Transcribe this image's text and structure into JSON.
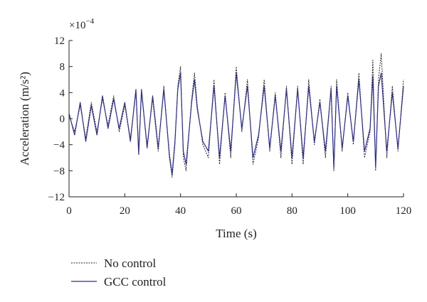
{
  "chart_data": {
    "type": "line",
    "xlabel": "Time (s)",
    "ylabel": "Acceleration (m/s²)",
    "y_multiplier": "×10",
    "y_multiplier_exponent": "−4",
    "xlim": [
      0,
      120
    ],
    "ylim": [
      -12,
      12
    ],
    "x_ticks": [
      0,
      20,
      40,
      60,
      80,
      100,
      120
    ],
    "x_tick_labels": [
      "0",
      "20",
      "40",
      "60",
      "80",
      "100",
      "120"
    ],
    "y_ticks": [
      -12,
      -8,
      -4,
      0,
      4,
      8,
      12
    ],
    "y_tick_labels": [
      "−12",
      "−8",
      "−4",
      "0",
      "4",
      "8",
      "12"
    ],
    "grid": false,
    "legend_placement": "bottom-left",
    "series": [
      {
        "name": "No control",
        "style": "dashed",
        "color": "#222222",
        "x": [
          0,
          2,
          4,
          6,
          8,
          10,
          12,
          14,
          16,
          18,
          20,
          22,
          24,
          25,
          26,
          28,
          30,
          32,
          34,
          36,
          37,
          38,
          39,
          40,
          41,
          42,
          44,
          45,
          46,
          48,
          50,
          52,
          54,
          56,
          58,
          60,
          62,
          64,
          66,
          68,
          70,
          72,
          74,
          76,
          78,
          80,
          82,
          84,
          86,
          88,
          90,
          92,
          94,
          95,
          96,
          98,
          100,
          102,
          104,
          106,
          108,
          109,
          110,
          111,
          112,
          114,
          116,
          118,
          120
        ],
        "values": [
          0.5,
          -2,
          2,
          -3,
          2.5,
          -2,
          3,
          -1,
          3.5,
          -2,
          2,
          -3,
          4,
          -5,
          4,
          -4,
          3,
          -5,
          5,
          -6,
          -9,
          -4,
          5,
          8,
          -6,
          -8,
          3,
          7,
          2,
          -4,
          -6,
          6,
          -7,
          4,
          -6,
          8,
          -2,
          6,
          -7,
          -3,
          6,
          -5,
          4,
          -6,
          5,
          -7,
          5,
          -7,
          6,
          -4,
          3,
          -6,
          5,
          -8,
          6,
          -5,
          4,
          -4,
          7,
          -6,
          -2,
          9,
          -8,
          6,
          10,
          -6,
          5,
          -5,
          6
        ]
      },
      {
        "name": "GCC control",
        "style": "solid",
        "color": "#2e2e8f",
        "x": [
          0,
          2,
          4,
          6,
          8,
          10,
          12,
          14,
          16,
          18,
          20,
          22,
          24,
          25,
          26,
          28,
          30,
          32,
          34,
          36,
          37,
          38,
          39,
          40,
          41,
          42,
          44,
          45,
          46,
          48,
          50,
          52,
          54,
          56,
          58,
          60,
          62,
          64,
          66,
          68,
          70,
          72,
          74,
          76,
          78,
          80,
          82,
          84,
          86,
          88,
          90,
          92,
          94,
          95,
          96,
          98,
          100,
          102,
          104,
          106,
          108,
          109,
          110,
          111,
          112,
          114,
          116,
          118,
          120
        ],
        "values": [
          0.8,
          -2.5,
          2.5,
          -3.5,
          2,
          -2.5,
          3.5,
          -1.5,
          3,
          -1.5,
          2.5,
          -3.5,
          4.5,
          -5.5,
          4.5,
          -4.5,
          3.5,
          -4.5,
          4.5,
          -5.5,
          -8.5,
          -3.5,
          4.5,
          7,
          -5,
          -7,
          2.5,
          6,
          1.5,
          -3.5,
          -5,
          5,
          -6,
          3.5,
          -5,
          7,
          -1.5,
          5,
          -6,
          -2.5,
          5,
          -4.5,
          3.5,
          -5,
          4.5,
          -6,
          4.5,
          -6,
          5,
          -3.5,
          2.5,
          -5,
          4.5,
          -7.5,
          5,
          -4.5,
          3.5,
          -3.5,
          6,
          -5,
          -1.5,
          6.5,
          -7.5,
          5,
          7,
          -5,
          4,
          -4.5,
          5
        ]
      }
    ]
  }
}
